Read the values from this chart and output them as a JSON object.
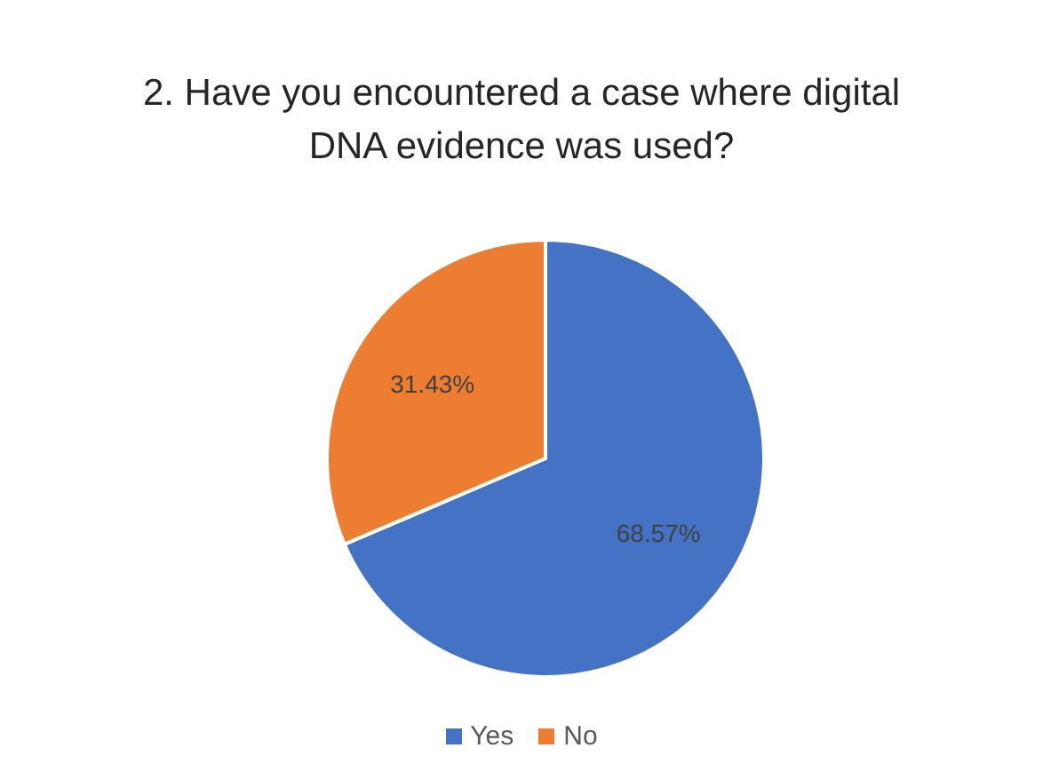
{
  "chart_data": {
    "type": "pie",
    "title": "2. Have you encountered a case where digital DNA evidence was used?",
    "categories": [
      "Yes",
      "No"
    ],
    "values": [
      68.57,
      31.43
    ],
    "value_labels": [
      "68.57%",
      "31.43%"
    ],
    "colors": [
      "#4472c4",
      "#ed7d31"
    ],
    "legend": "bottom"
  }
}
